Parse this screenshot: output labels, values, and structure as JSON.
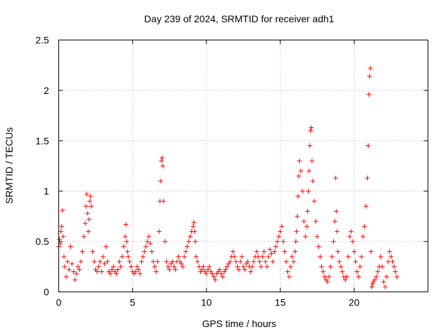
{
  "chart_data": {
    "type": "scatter",
    "title": "Day 239 of 2024, SRMTID for receiver adh1",
    "xlabel": "GPS time / hours",
    "ylabel": "SRMTID / TECUs",
    "xlim": [
      0,
      25
    ],
    "ylim": [
      0,
      2.5
    ],
    "xticks": [
      0,
      5,
      10,
      15,
      20
    ],
    "yticks": [
      0,
      0.5,
      1,
      1.5,
      2,
      2.5
    ],
    "xtick_labels": [
      "0",
      "5",
      "10",
      "15",
      "20"
    ],
    "ytick_labels": [
      "0",
      "0.5",
      "1",
      "1.5",
      "2",
      "2.5"
    ],
    "grid": true,
    "marker": "+",
    "color": "#ff0000",
    "series": [
      {
        "name": "adh1",
        "x": [
          0.0,
          0.05,
          0.1,
          0.15,
          0.2,
          0.25,
          0.3,
          0.35,
          0.4,
          0.5,
          0.6,
          0.7,
          0.8,
          0.9,
          1.0,
          1.1,
          1.2,
          1.3,
          1.4,
          1.5,
          1.6,
          1.7,
          1.8,
          1.85,
          1.9,
          1.95,
          2.0,
          2.05,
          2.1,
          2.15,
          2.2,
          2.3,
          2.4,
          2.5,
          2.6,
          2.7,
          2.8,
          2.9,
          3.0,
          3.1,
          3.2,
          3.3,
          3.4,
          3.5,
          3.6,
          3.7,
          3.8,
          3.9,
          4.0,
          4.1,
          4.2,
          4.3,
          4.4,
          4.5,
          4.55,
          4.6,
          4.65,
          4.7,
          4.8,
          4.9,
          5.0,
          5.1,
          5.2,
          5.3,
          5.4,
          5.5,
          5.6,
          5.7,
          5.8,
          5.9,
          6.0,
          6.1,
          6.2,
          6.3,
          6.4,
          6.5,
          6.6,
          6.7,
          6.8,
          6.85,
          6.9,
          6.95,
          7.0,
          7.05,
          7.1,
          7.2,
          7.3,
          7.4,
          7.5,
          7.6,
          7.7,
          7.8,
          7.9,
          8.0,
          8.1,
          8.2,
          8.3,
          8.4,
          8.5,
          8.6,
          8.7,
          8.8,
          8.9,
          9.0,
          9.1,
          9.15,
          9.2,
          9.25,
          9.3,
          9.4,
          9.5,
          9.6,
          9.7,
          9.8,
          9.9,
          10.0,
          10.1,
          10.2,
          10.3,
          10.4,
          10.5,
          10.6,
          10.7,
          10.8,
          10.9,
          11.0,
          11.1,
          11.2,
          11.3,
          11.4,
          11.5,
          11.6,
          11.7,
          11.8,
          11.9,
          12.0,
          12.1,
          12.2,
          12.3,
          12.4,
          12.5,
          12.6,
          12.7,
          12.8,
          12.9,
          13.0,
          13.1,
          13.2,
          13.3,
          13.4,
          13.5,
          13.6,
          13.7,
          13.8,
          13.9,
          14.0,
          14.1,
          14.2,
          14.3,
          14.4,
          14.5,
          14.6,
          14.7,
          14.8,
          14.9,
          15.0,
          15.1,
          15.2,
          15.3,
          15.4,
          15.5,
          15.6,
          15.7,
          15.8,
          15.9,
          16.0,
          16.05,
          16.1,
          16.15,
          16.2,
          16.25,
          16.3,
          16.4,
          16.5,
          16.6,
          16.7,
          16.8,
          16.85,
          16.9,
          16.95,
          17.0,
          17.05,
          17.1,
          17.15,
          17.2,
          17.3,
          17.4,
          17.5,
          17.6,
          17.7,
          17.8,
          17.9,
          18.0,
          18.1,
          18.2,
          18.3,
          18.4,
          18.5,
          18.6,
          18.7,
          18.75,
          18.8,
          18.85,
          18.9,
          19.0,
          19.1,
          19.2,
          19.3,
          19.4,
          19.5,
          19.6,
          19.7,
          19.8,
          19.9,
          20.0,
          20.1,
          20.2,
          20.3,
          20.4,
          20.5,
          20.6,
          20.7,
          20.8,
          20.9,
          20.95,
          21.0,
          21.05,
          21.1,
          21.15,
          21.2,
          21.25,
          21.3,
          21.4,
          21.5,
          21.6,
          21.7,
          21.8,
          21.9,
          22.0,
          22.1,
          22.2,
          22.3,
          22.4,
          22.5,
          22.6,
          22.7,
          22.8,
          22.9
        ],
        "y": [
          0.45,
          0.52,
          0.48,
          0.6,
          0.65,
          0.81,
          0.55,
          0.35,
          0.25,
          0.15,
          0.3,
          0.22,
          0.45,
          0.28,
          0.2,
          0.12,
          0.18,
          0.25,
          0.22,
          0.3,
          0.4,
          0.55,
          0.68,
          0.85,
          0.97,
          0.78,
          0.6,
          0.72,
          0.9,
          0.95,
          0.85,
          0.4,
          0.3,
          0.22,
          0.2,
          0.25,
          0.3,
          0.2,
          0.35,
          0.28,
          0.45,
          0.3,
          0.2,
          0.18,
          0.22,
          0.25,
          0.2,
          0.18,
          0.22,
          0.3,
          0.25,
          0.35,
          0.45,
          0.55,
          0.67,
          0.5,
          0.4,
          0.35,
          0.3,
          0.25,
          0.2,
          0.18,
          0.2,
          0.25,
          0.22,
          0.18,
          0.3,
          0.35,
          0.4,
          0.45,
          0.5,
          0.55,
          0.48,
          0.4,
          0.3,
          0.25,
          0.2,
          0.3,
          0.6,
          0.9,
          1.1,
          1.3,
          1.33,
          1.25,
          0.9,
          0.5,
          0.3,
          0.25,
          0.22,
          0.28,
          0.3,
          0.25,
          0.22,
          0.3,
          0.35,
          0.3,
          0.28,
          0.25,
          0.35,
          0.4,
          0.45,
          0.5,
          0.55,
          0.6,
          0.65,
          0.69,
          0.6,
          0.5,
          0.35,
          0.3,
          0.25,
          0.2,
          0.22,
          0.25,
          0.2,
          0.18,
          0.22,
          0.25,
          0.2,
          0.18,
          0.15,
          0.12,
          0.18,
          0.2,
          0.22,
          0.18,
          0.15,
          0.2,
          0.22,
          0.25,
          0.28,
          0.3,
          0.35,
          0.4,
          0.35,
          0.3,
          0.25,
          0.22,
          0.3,
          0.35,
          0.25,
          0.22,
          0.28,
          0.3,
          0.25,
          0.2,
          0.25,
          0.3,
          0.35,
          0.4,
          0.35,
          0.3,
          0.25,
          0.35,
          0.4,
          0.3,
          0.25,
          0.35,
          0.42,
          0.38,
          0.3,
          0.4,
          0.45,
          0.5,
          0.55,
          0.6,
          0.65,
          0.5,
          0.4,
          0.3,
          0.2,
          0.15,
          0.25,
          0.35,
          0.3,
          0.4,
          0.5,
          0.6,
          0.75,
          0.95,
          1.15,
          1.3,
          1.2,
          1.0,
          0.7,
          0.55,
          0.65,
          0.8,
          1.0,
          1.2,
          1.45,
          1.6,
          1.63,
          1.3,
          1.1,
          0.9,
          0.7,
          0.55,
          0.45,
          0.35,
          0.25,
          0.2,
          0.15,
          0.12,
          0.1,
          0.15,
          0.25,
          0.35,
          0.5,
          0.7,
          1.13,
          0.8,
          0.6,
          0.4,
          0.3,
          0.25,
          0.2,
          0.15,
          0.12,
          0.15,
          0.35,
          0.55,
          0.6,
          0.5,
          0.4,
          0.3,
          0.2,
          0.15,
          0.25,
          0.35,
          0.55,
          0.65,
          0.85,
          1.13,
          1.45,
          1.96,
          2.14,
          2.22,
          0.4,
          0.05,
          0.08,
          0.1,
          0.12,
          0.15,
          0.2,
          0.25,
          0.35,
          0.25,
          0.1,
          0.05,
          0.15,
          0.3,
          0.4,
          0.35,
          0.3,
          0.25,
          0.2,
          0.15
        ]
      }
    ]
  }
}
